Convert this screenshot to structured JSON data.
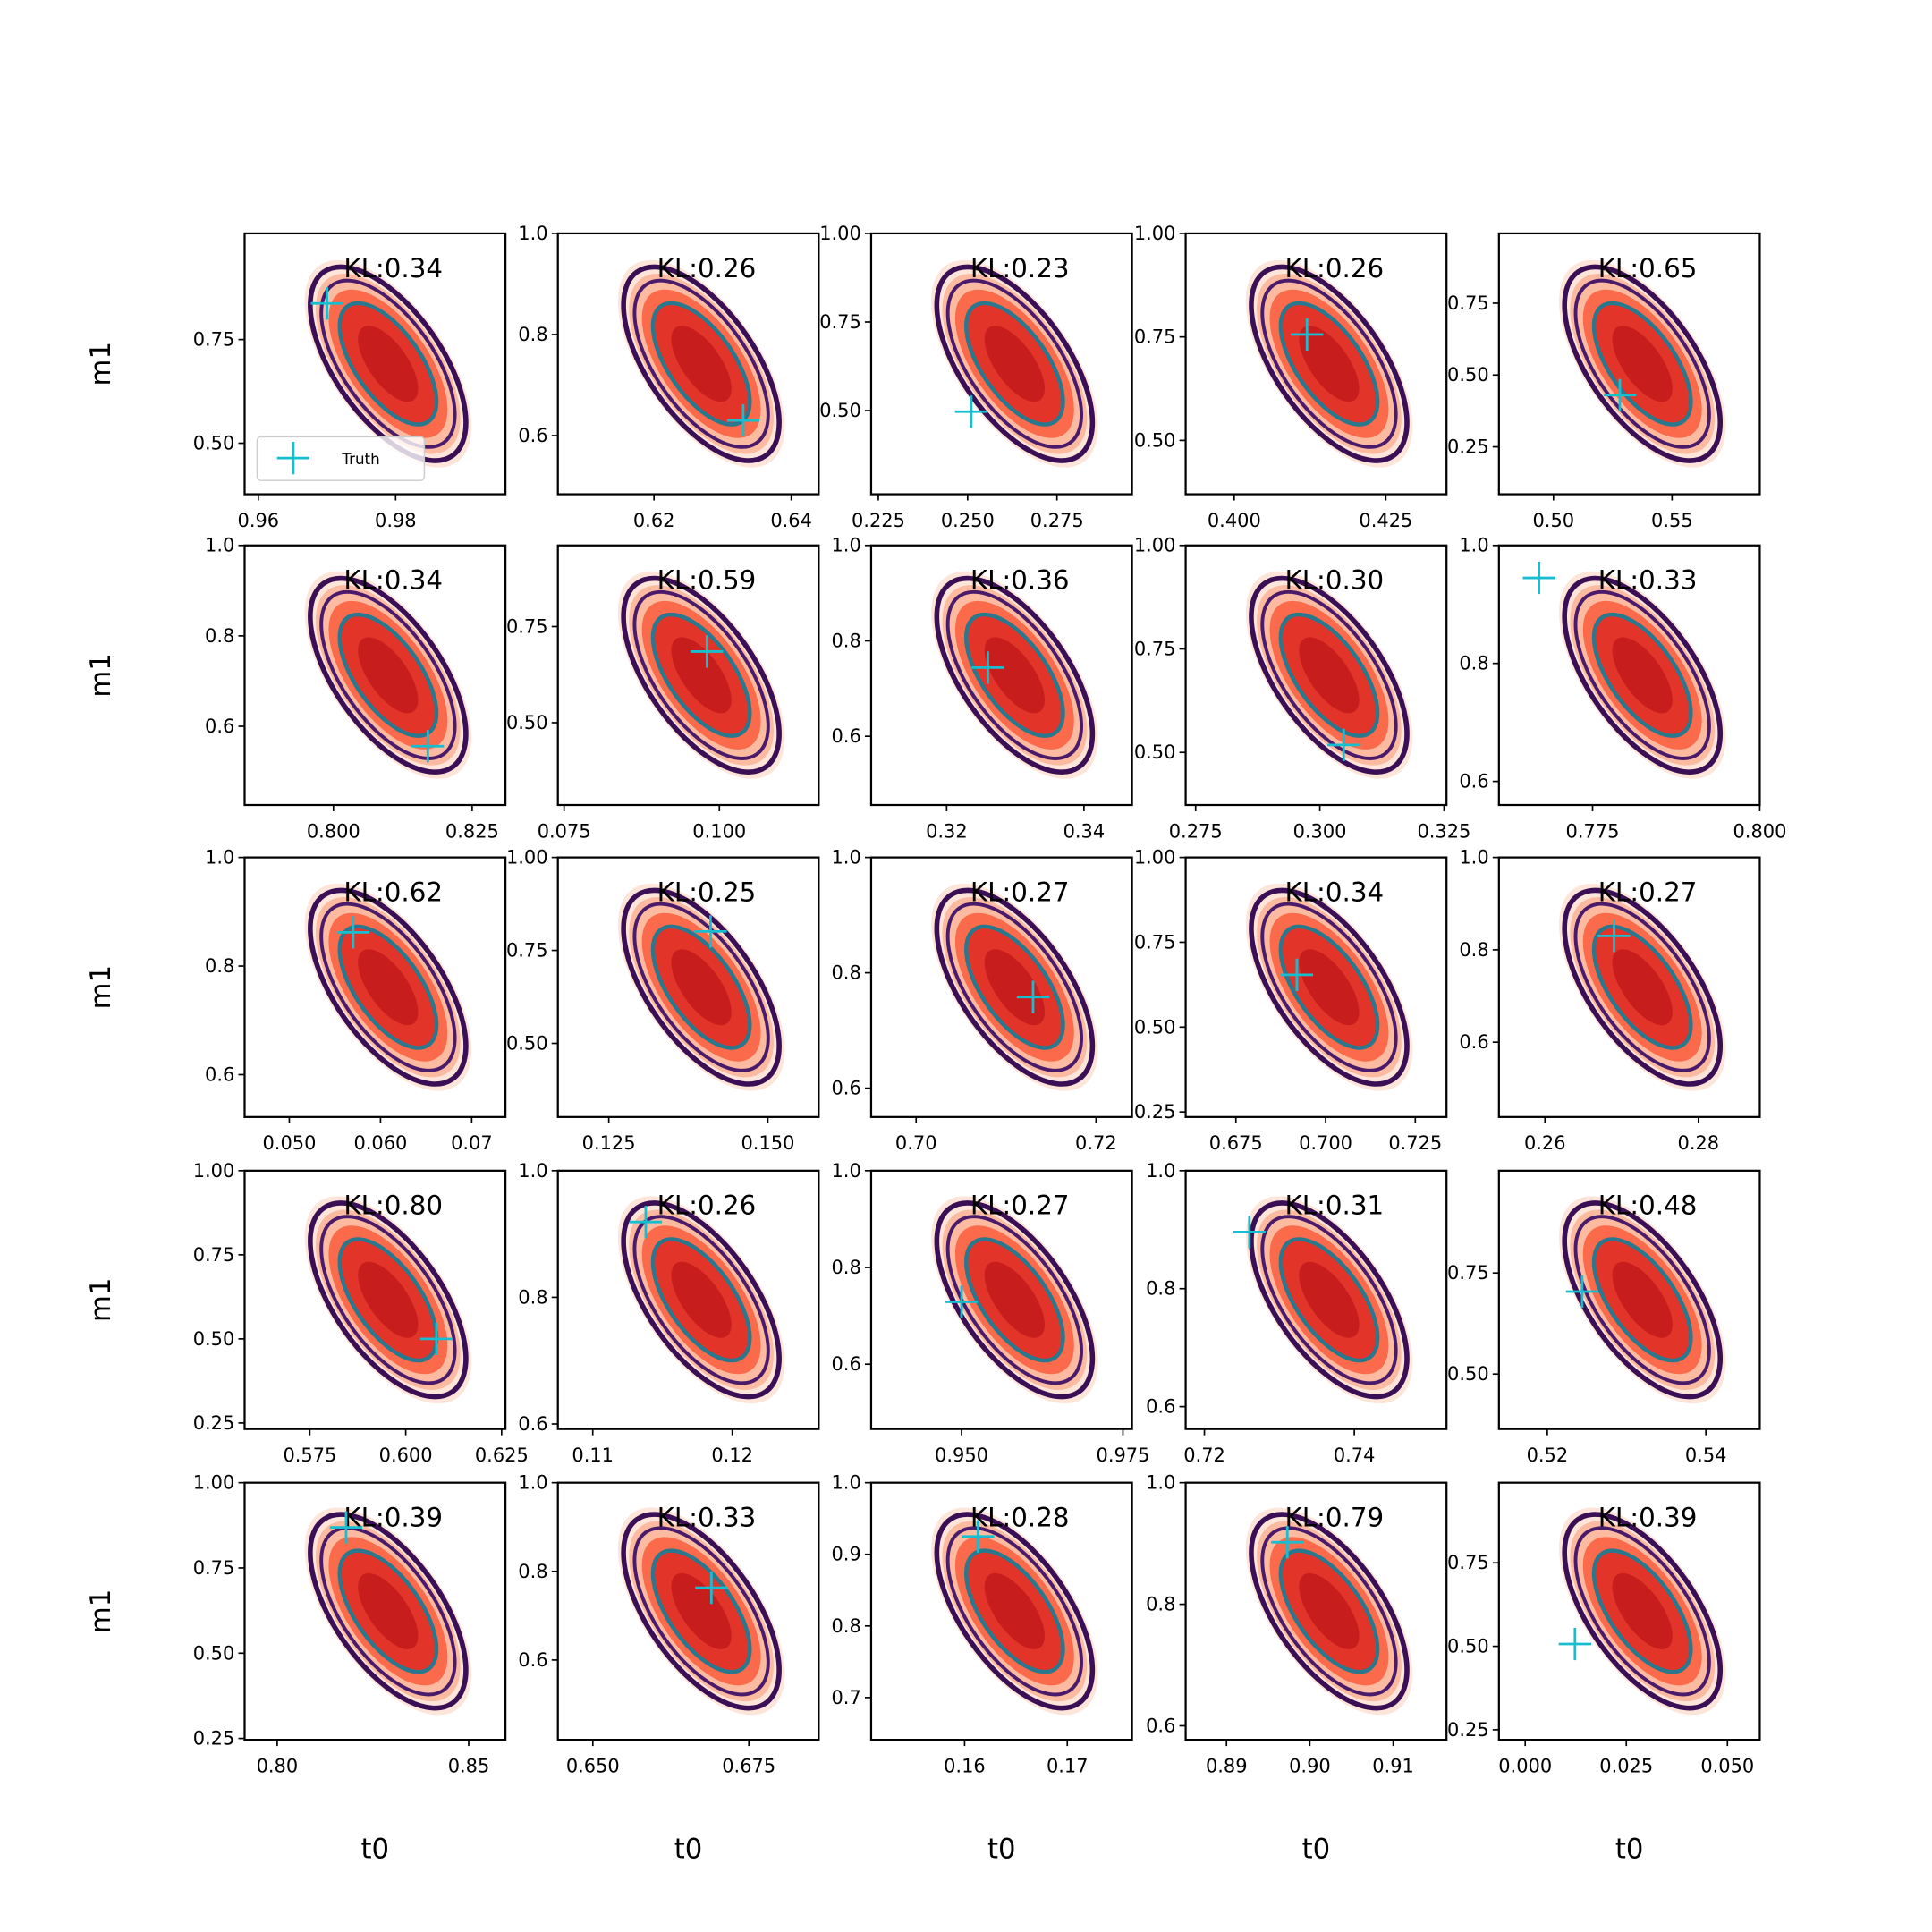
{
  "chart_data": [
    {
      "type": "contour",
      "title": "KL:0.34",
      "ylabel": "m1",
      "xlim": [
        0.958,
        0.996
      ],
      "ylim": [
        0.377,
        1.006
      ],
      "xticks": [
        0.96,
        0.98
      ],
      "yticks": [
        {
          "value": 0.5,
          "label": "0.50"
        },
        0.75
      ],
      "x": [
        0.97
      ],
      "values": [
        0.837
      ],
      "marker_color": "#17becf",
      "legend": {
        "label": "Truth",
        "loc": "lower left"
      }
    },
    {
      "type": "contour",
      "title": "KL:0.26",
      "xlim": [
        0.606,
        0.644
      ],
      "ylim": [
        0.484,
        1.0
      ],
      "xticks": [
        0.62,
        0.64
      ],
      "yticks": [
        0.6,
        0.8,
        {
          "value": 1,
          "label": "1.0"
        }
      ],
      "x": [
        0.633
      ],
      "values": [
        0.63
      ],
      "marker_color": "#17becf"
    },
    {
      "type": "contour",
      "title": "KL:0.23",
      "xlim": [
        0.223,
        0.296
      ],
      "ylim": [
        0.264,
        1.0
      ],
      "xticks": [
        0.225,
        {
          "value": 0.25,
          "label": "0.250"
        },
        0.275
      ],
      "yticks": [
        {
          "value": 0.5,
          "label": "0.50"
        },
        0.75,
        {
          "value": 1,
          "label": "1.00"
        }
      ],
      "x": [
        0.251
      ],
      "values": [
        0.497
      ],
      "marker_color": "#17becf"
    },
    {
      "type": "contour",
      "title": "KL:0.26",
      "xlim": [
        0.392,
        0.435
      ],
      "ylim": [
        0.37,
        1.0
      ],
      "xticks": [
        {
          "value": 0.4,
          "label": "0.400"
        },
        0.425
      ],
      "yticks": [
        {
          "value": 0.5,
          "label": "0.50"
        },
        0.75,
        {
          "value": 1,
          "label": "1.00"
        }
      ],
      "x": [
        0.412
      ],
      "values": [
        0.756
      ],
      "marker_color": "#17becf"
    },
    {
      "type": "contour",
      "title": "KL:0.65",
      "xlim": [
        0.477,
        0.587
      ],
      "ylim": [
        0.085,
        0.993
      ],
      "xticks": [
        {
          "value": 0.5,
          "label": "0.50"
        },
        0.55
      ],
      "yticks": [
        0.25,
        {
          "value": 0.5,
          "label": "0.50"
        },
        0.75
      ],
      "x": [
        0.528
      ],
      "values": [
        0.43
      ],
      "marker_color": "#17becf"
    },
    {
      "type": "contour",
      "title": "KL:0.34",
      "ylabel": "m1",
      "xlim": [
        0.784,
        0.831
      ],
      "ylim": [
        0.426,
        1.0
      ],
      "xticks": [
        {
          "value": 0.8,
          "label": "0.800"
        },
        0.825
      ],
      "yticks": [
        0.6,
        0.8,
        {
          "value": 1,
          "label": "1.0"
        }
      ],
      "x": [
        0.817
      ],
      "values": [
        0.556
      ],
      "marker_color": "#17becf"
    },
    {
      "type": "contour",
      "title": "KL:0.59",
      "xlim": [
        0.074,
        0.116
      ],
      "ylim": [
        0.286,
        0.961
      ],
      "xticks": [
        0.075,
        {
          "value": 0.1,
          "label": "0.100"
        }
      ],
      "yticks": [
        {
          "value": 0.5,
          "label": "0.50"
        },
        0.75
      ],
      "x": [
        0.098
      ],
      "values": [
        0.685
      ],
      "marker_color": "#17becf"
    },
    {
      "type": "contour",
      "title": "KL:0.36",
      "xlim": [
        0.309,
        0.347
      ],
      "ylim": [
        0.456,
        1.0
      ],
      "xticks": [
        0.32,
        0.34
      ],
      "yticks": [
        0.6,
        0.8,
        {
          "value": 1,
          "label": "1.0"
        }
      ],
      "x": [
        0.326
      ],
      "values": [
        0.744
      ],
      "marker_color": "#17becf"
    },
    {
      "type": "contour",
      "title": "KL:0.30",
      "xlim": [
        0.273,
        0.3255
      ],
      "ylim": [
        0.373,
        1.0
      ],
      "xticks": [
        0.275,
        {
          "value": 0.3,
          "label": "0.300"
        },
        0.325
      ],
      "yticks": [
        {
          "value": 0.5,
          "label": "0.50"
        },
        0.75,
        {
          "value": 1,
          "label": "1.00"
        }
      ],
      "x": [
        0.3048
      ],
      "values": [
        0.518
      ],
      "marker_color": "#17becf"
    },
    {
      "type": "contour",
      "title": "KL:0.33",
      "xlim": [
        0.761,
        0.8
      ],
      "ylim": [
        0.56,
        1.0
      ],
      "xticks": [
        0.775,
        {
          "value": 0.8,
          "label": "0.800"
        }
      ],
      "yticks": [
        0.6,
        0.8,
        {
          "value": 1,
          "label": "1.0"
        }
      ],
      "x": [
        0.767
      ],
      "values": [
        0.945
      ],
      "marker_color": "#17becf"
    },
    {
      "type": "contour",
      "title": "KL:0.62",
      "ylabel": "m1",
      "xlim": [
        0.0451,
        0.0737
      ],
      "ylim": [
        0.522,
        1.0
      ],
      "xticks": [
        {
          "value": 0.05,
          "label": "0.050"
        },
        {
          "value": 0.06,
          "label": "0.060"
        },
        0.07
      ],
      "yticks": [
        0.6,
        0.8,
        {
          "value": 1,
          "label": "1.0"
        }
      ],
      "x": [
        0.057
      ],
      "values": [
        0.862
      ],
      "marker_color": "#17becf"
    },
    {
      "type": "contour",
      "title": "KL:0.25",
      "xlim": [
        0.117,
        0.158
      ],
      "ylim": [
        0.302,
        1.0
      ],
      "xticks": [
        0.125,
        {
          "value": 0.15,
          "label": "0.150"
        }
      ],
      "yticks": [
        {
          "value": 0.5,
          "label": "0.50"
        },
        0.75,
        {
          "value": 1,
          "label": "1.00"
        }
      ],
      "x": [
        0.141
      ],
      "values": [
        0.801
      ],
      "marker_color": "#17becf"
    },
    {
      "type": "contour",
      "title": "KL:0.27",
      "xlim": [
        0.695,
        0.724
      ],
      "ylim": [
        0.55,
        1.0
      ],
      "xticks": [
        {
          "value": 0.7,
          "label": "0.70"
        },
        0.72
      ],
      "yticks": [
        0.6,
        0.8,
        {
          "value": 1,
          "label": "1.0"
        }
      ],
      "x": [
        0.713
      ],
      "values": [
        0.758
      ],
      "marker_color": "#17becf"
    },
    {
      "type": "contour",
      "title": "KL:0.34",
      "xlim": [
        0.661,
        0.7337
      ],
      "ylim": [
        0.235,
        1.0
      ],
      "xticks": [
        0.675,
        {
          "value": 0.7,
          "label": "0.700"
        },
        0.725
      ],
      "yticks": [
        0.25,
        {
          "value": 0.5,
          "label": "0.50"
        },
        0.75,
        {
          "value": 1,
          "label": "1.00"
        }
      ],
      "x": [
        0.692
      ],
      "values": [
        0.654
      ],
      "marker_color": "#17becf"
    },
    {
      "type": "contour",
      "title": "KL:0.27",
      "xlim": [
        0.254,
        0.288
      ],
      "ylim": [
        0.438,
        1.0
      ],
      "xticks": [
        0.26,
        0.28
      ],
      "yticks": [
        0.6,
        0.8,
        {
          "value": 1,
          "label": "1.0"
        }
      ],
      "x": [
        0.269
      ],
      "values": [
        0.83
      ],
      "marker_color": "#17becf"
    },
    {
      "type": "contour",
      "title": "KL:0.80",
      "ylabel": "m1",
      "xlim": [
        0.558,
        0.626
      ],
      "ylim": [
        0.232,
        1.0
      ],
      "xticks": [
        0.575,
        {
          "value": 0.6,
          "label": "0.600"
        },
        0.625
      ],
      "yticks": [
        0.25,
        {
          "value": 0.5,
          "label": "0.50"
        },
        0.75,
        {
          "value": 1,
          "label": "1.00"
        }
      ],
      "x": [
        0.608
      ],
      "values": [
        0.5
      ],
      "marker_color": "#17becf"
    },
    {
      "type": "contour",
      "title": "KL:0.26",
      "xlim": [
        0.1075,
        0.1262
      ],
      "ylim": [
        0.592,
        1.0
      ],
      "xticks": [
        0.11,
        0.12
      ],
      "yticks": [
        0.6,
        0.8,
        {
          "value": 1,
          "label": "1.0"
        }
      ],
      "x": [
        0.1138
      ],
      "values": [
        0.919
      ],
      "marker_color": "#17becf"
    },
    {
      "type": "contour",
      "title": "KL:0.27",
      "xlim": [
        0.936,
        0.9764
      ],
      "ylim": [
        0.466,
        1.0
      ],
      "xticks": [
        {
          "value": 0.95,
          "label": "0.950"
        },
        0.975
      ],
      "yticks": [
        0.6,
        0.8,
        {
          "value": 1,
          "label": "1.0"
        }
      ],
      "x": [
        0.95
      ],
      "values": [
        0.729
      ],
      "marker_color": "#17becf"
    },
    {
      "type": "contour",
      "title": "KL:0.31",
      "xlim": [
        0.7175,
        0.7523
      ],
      "ylim": [
        0.562,
        1.0
      ],
      "xticks": [
        0.72,
        0.74
      ],
      "yticks": [
        0.6,
        0.8,
        {
          "value": 1,
          "label": "1.0"
        }
      ],
      "x": [
        0.726
      ],
      "values": [
        0.896
      ],
      "marker_color": "#17becf"
    },
    {
      "type": "contour",
      "title": "KL:0.48",
      "xlim": [
        0.5139,
        0.5468
      ],
      "ylim": [
        0.364,
        1.003
      ],
      "xticks": [
        0.52,
        0.54
      ],
      "yticks": [
        {
          "value": 0.5,
          "label": "0.50"
        },
        0.75
      ],
      "x": [
        0.5244
      ],
      "values": [
        0.704
      ],
      "marker_color": "#17becf"
    },
    {
      "type": "contour",
      "title": "KL:0.39",
      "ylabel": "m1",
      "xlabel": "t0",
      "xlim": [
        0.7915,
        0.8596
      ],
      "ylim": [
        0.246,
        1.0
      ],
      "xticks": [
        {
          "value": 0.8,
          "label": "0.80"
        },
        0.85
      ],
      "yticks": [
        0.25,
        {
          "value": 0.5,
          "label": "0.50"
        },
        0.75,
        {
          "value": 1,
          "label": "1.00"
        }
      ],
      "x": [
        0.818
      ],
      "values": [
        0.869
      ],
      "marker_color": "#17becf"
    },
    {
      "type": "contour",
      "title": "KL:0.33",
      "xlabel": "t0",
      "xlim": [
        0.6444,
        0.6862
      ],
      "ylim": [
        0.42,
        1.0
      ],
      "xticks": [
        {
          "value": 0.65,
          "label": "0.650"
        },
        0.675
      ],
      "yticks": [
        0.6,
        0.8,
        {
          "value": 1,
          "label": "1.0"
        }
      ],
      "x": [
        0.669
      ],
      "values": [
        0.763
      ],
      "marker_color": "#17becf"
    },
    {
      "type": "contour",
      "title": "KL:0.28",
      "xlabel": "t0",
      "xlim": [
        0.1509,
        0.1763
      ],
      "ylim": [
        0.641,
        1.0
      ],
      "xticks": [
        0.16,
        0.17
      ],
      "yticks": [
        0.7,
        0.8,
        0.9,
        {
          "value": 1,
          "label": "1.0"
        }
      ],
      "x": [
        0.1613
      ],
      "values": [
        0.925
      ],
      "marker_color": "#17becf"
    },
    {
      "type": "contour",
      "title": "KL:0.79",
      "xlabel": "t0",
      "xlim": [
        0.8851,
        0.9164
      ],
      "ylim": [
        0.577,
        1.0
      ],
      "xticks": [
        0.89,
        {
          "value": 0.9,
          "label": "0.90"
        },
        0.91
      ],
      "yticks": [
        0.6,
        0.8,
        {
          "value": 1,
          "label": "1.0"
        }
      ],
      "x": [
        0.8973
      ],
      "values": [
        0.902
      ],
      "marker_color": "#17becf"
    },
    {
      "type": "contour",
      "title": "KL:0.39",
      "xlabel": "t0",
      "xlim": [
        -0.0065,
        0.058
      ],
      "ylim": [
        0.22,
        0.99
      ],
      "xticks": [
        {
          "value": 0,
          "label": "0.000"
        },
        0.025,
        {
          "value": 0.05,
          "label": "0.050"
        }
      ],
      "yticks": [
        0.25,
        {
          "value": 0.5,
          "label": "0.50"
        },
        0.75
      ],
      "x": [
        0.0123
      ],
      "values": [
        0.507
      ],
      "marker_color": "#17becf"
    }
  ]
}
